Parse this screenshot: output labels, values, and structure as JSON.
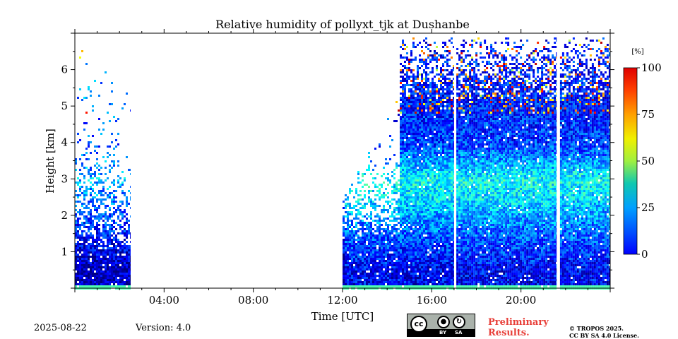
{
  "chart_data": {
    "type": "heatmap",
    "title": "Relative humidity of pollyxt_tjk at Dushanbe",
    "xlabel": "Time [UTC]",
    "ylabel": "Height [km]",
    "xlim_hours": [
      0,
      24
    ],
    "ylim_km": [
      0,
      7
    ],
    "x_ticks": [
      {
        "hours": 4,
        "label": "04:00"
      },
      {
        "hours": 8,
        "label": "08:00"
      },
      {
        "hours": 12,
        "label": "12:00"
      },
      {
        "hours": 16,
        "label": "16:00"
      },
      {
        "hours": 20,
        "label": "20:00"
      }
    ],
    "y_ticks": [
      {
        "km": 1,
        "label": "1"
      },
      {
        "km": 2,
        "label": "2"
      },
      {
        "km": 3,
        "label": "3"
      },
      {
        "km": 4,
        "label": "4"
      },
      {
        "km": 5,
        "label": "5"
      },
      {
        "km": 6,
        "label": "6"
      }
    ],
    "colorbar": {
      "unit": "[%]",
      "range": [
        0,
        100
      ],
      "ticks": [
        {
          "value": 0,
          "label": "0"
        },
        {
          "value": 25,
          "label": "25"
        },
        {
          "value": 50,
          "label": "50"
        },
        {
          "value": 75,
          "label": "75"
        },
        {
          "value": 100,
          "label": "100"
        }
      ],
      "colormap": "jet"
    },
    "data_coverage_hours": [
      [
        0,
        2.5
      ],
      [
        12.0,
        17.0
      ],
      [
        17.1,
        21.6
      ],
      [
        21.75,
        24
      ]
    ],
    "humidity_profile_percent_by_km": [
      {
        "km": 0.5,
        "early": 5,
        "late": 12
      },
      {
        "km": 1.5,
        "early": 15,
        "late": 22
      },
      {
        "km": 2.5,
        "early": 25,
        "late": 35
      },
      {
        "km": 3.0,
        "early": 30,
        "late": 38
      },
      {
        "km": 4.0,
        "early": 20,
        "late": 18
      },
      {
        "km": 5.0,
        "early": 25,
        "late": 15
      }
    ]
  },
  "footer": {
    "date": "2025-08-22",
    "version": "Version: 4.0",
    "license_badge": {
      "cc": "cc",
      "by": "BY",
      "sa": "SA"
    },
    "preliminary": "Preliminary Results.",
    "copyright_line1": "© TROPOS 2025.",
    "copyright_line2": "CC BY SA 4.0 License."
  }
}
